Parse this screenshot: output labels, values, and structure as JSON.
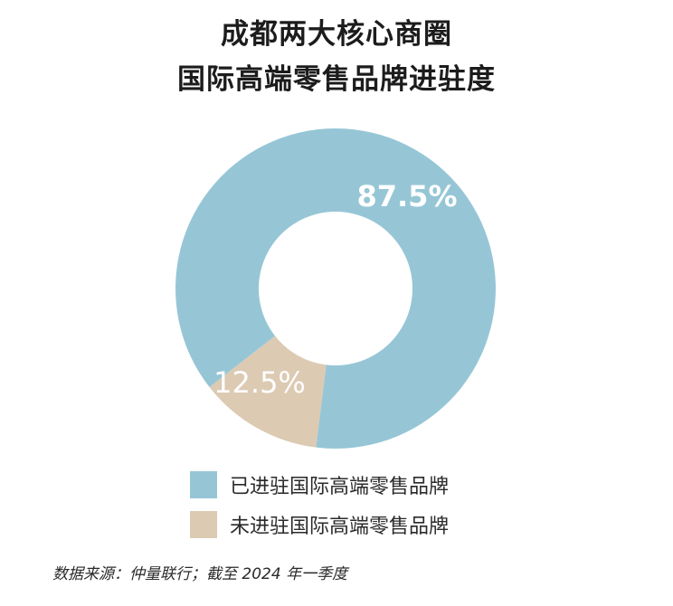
{
  "title_line1": "成都两大核心商圈",
  "title_line2": "国际高端零售品牌进驻度",
  "source": "数据来源：仲量联行；截至 2024 年一季度",
  "chart_data": {
    "type": "pie",
    "donut": true,
    "title": "成都两大核心商圈 国际高端零售品牌进驻度",
    "slices": [
      {
        "label": "已进驻国际高端零售品牌",
        "value": 87.5,
        "display": "87.5%",
        "color": "#96c6d6"
      },
      {
        "label": "未进驻国际高端零售品牌",
        "value": 12.5,
        "display": "12.5%",
        "color": "#dccab3"
      }
    ],
    "legend_placement": "bottom"
  }
}
